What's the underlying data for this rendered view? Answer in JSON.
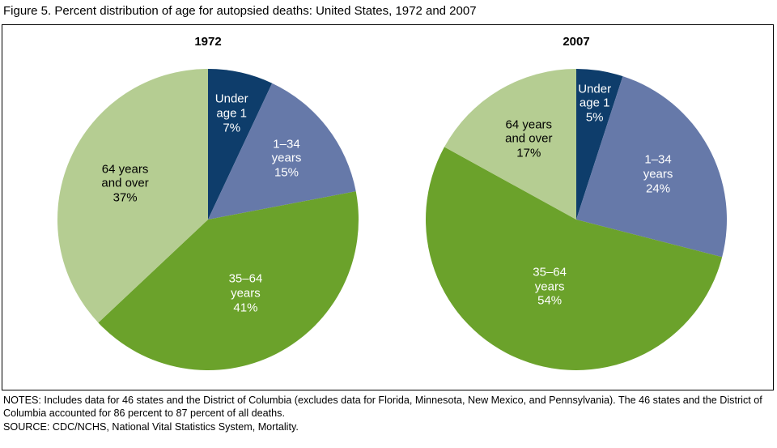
{
  "figure": {
    "title": "Figure 5. Percent distribution of age for autopsied deaths: United States, 1972 and 2007",
    "notes": "NOTES: Includes data for 46 states and the District of Columbia (excludes data for Florida, Minnesota, New Mexico, and Pennsylvania). The 46 states and the District of Columbia accounted for 86 percent to 87 percent of all deaths.",
    "source": "SOURCE: CDC/NCHS, National Vital Statistics System, Mortality."
  },
  "palette": {
    "under_age_1": "#0e3d6b",
    "age_1_34": "#6679a9",
    "age_35_64": "#6ba22b",
    "age_64_over": "#b5cd92"
  },
  "chart_data": [
    {
      "type": "pie",
      "title": "1972",
      "unit": "percent",
      "start_angle_deg": 0,
      "direction": "clockwise",
      "slices": [
        {
          "id": "under-1",
          "label": "Under age 1",
          "value": 7,
          "color": "#0e3d6b",
          "text_color": "#ffffff",
          "label_lines": [
            "Under",
            "age 1",
            "7%"
          ],
          "label_r": 0.72
        },
        {
          "id": "1-34",
          "label": "1–34 years",
          "value": 15,
          "color": "#6679a9",
          "text_color": "#ffffff",
          "label_lines": [
            "1–34",
            "years",
            "15%"
          ],
          "label_r": 0.66
        },
        {
          "id": "35-64",
          "label": "35–64 years",
          "value": 41,
          "color": "#6ba22b",
          "text_color": "#ffffff",
          "label_lines": [
            "35–64",
            "years",
            "41%"
          ],
          "label_r": 0.55
        },
        {
          "id": "64-over",
          "label": "64 years and over",
          "value": 37,
          "color": "#b5cd92",
          "text_color": "#000000",
          "label_lines": [
            "64 years",
            "and over",
            "37%"
          ],
          "label_r": 0.6
        }
      ]
    },
    {
      "type": "pie",
      "title": "2007",
      "unit": "percent",
      "start_angle_deg": 0,
      "direction": "clockwise",
      "slices": [
        {
          "id": "under-1",
          "label": "Under age 1",
          "value": 5,
          "color": "#0e3d6b",
          "text_color": "#ffffff",
          "label_lines": [
            "Under",
            "age 1",
            "5%"
          ],
          "label_r": 0.78
        },
        {
          "id": "1-34",
          "label": "1–34 years",
          "value": 24,
          "color": "#6679a9",
          "text_color": "#ffffff",
          "label_lines": [
            "1–34",
            "years",
            "24%"
          ],
          "label_r": 0.62
        },
        {
          "id": "35-64",
          "label": "35–64 years",
          "value": 54,
          "color": "#6ba22b",
          "text_color": "#ffffff",
          "label_lines": [
            "35–64",
            "years",
            "54%"
          ],
          "label_r": 0.48
        },
        {
          "id": "64-over",
          "label": "64 years and over",
          "value": 17,
          "color": "#b5cd92",
          "text_color": "#000000",
          "label_lines": [
            "64 years",
            "and over",
            "17%"
          ],
          "label_r": 0.62
        }
      ]
    }
  ]
}
